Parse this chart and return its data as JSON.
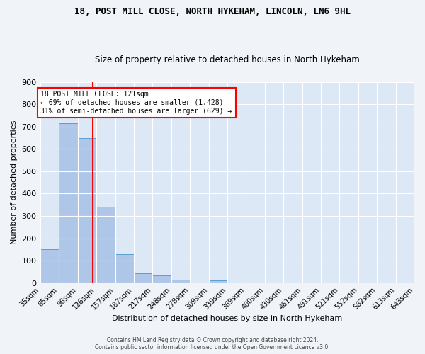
{
  "title1": "18, POST MILL CLOSE, NORTH HYKEHAM, LINCOLN, LN6 9HL",
  "title2": "Size of property relative to detached houses in North Hykeham",
  "xlabel": "Distribution of detached houses by size in North Hykeham",
  "ylabel": "Number of detached properties",
  "footer1": "Contains HM Land Registry data © Crown copyright and database right 2024.",
  "footer2": "Contains public sector information licensed under the Open Government Licence v3.0.",
  "bin_edges": [
    35,
    65,
    96,
    126,
    157,
    187,
    217,
    248,
    278,
    309,
    339,
    369,
    400,
    430,
    461,
    491,
    521,
    552,
    582,
    613,
    643
  ],
  "bin_labels": [
    "35sqm",
    "65sqm",
    "96sqm",
    "126sqm",
    "157sqm",
    "187sqm",
    "217sqm",
    "248sqm",
    "278sqm",
    "309sqm",
    "339sqm",
    "369sqm",
    "400sqm",
    "430sqm",
    "461sqm",
    "491sqm",
    "521sqm",
    "552sqm",
    "582sqm",
    "613sqm",
    "643sqm"
  ],
  "bar_heights": [
    150,
    715,
    650,
    340,
    130,
    43,
    33,
    13,
    0,
    10,
    0,
    0,
    0,
    0,
    0,
    0,
    0,
    0,
    0,
    0
  ],
  "bar_color": "#aec6e8",
  "bar_edge_color": "#5a9fd4",
  "red_line_x": 121,
  "ylim": [
    0,
    900
  ],
  "yticks": [
    0,
    100,
    200,
    300,
    400,
    500,
    600,
    700,
    800,
    900
  ],
  "annotation_line1": "18 POST MILL CLOSE: 121sqm",
  "annotation_line2": "← 69% of detached houses are smaller (1,428)",
  "annotation_line3": "31% of semi-detached houses are larger (629) →",
  "annotation_box_color": "#ffffff",
  "annotation_box_edge": "#ff0000",
  "red_line_color": "#ff0000",
  "bg_color": "#dce8f5",
  "grid_color": "#ffffff",
  "fig_bg": "#f0f4f8"
}
